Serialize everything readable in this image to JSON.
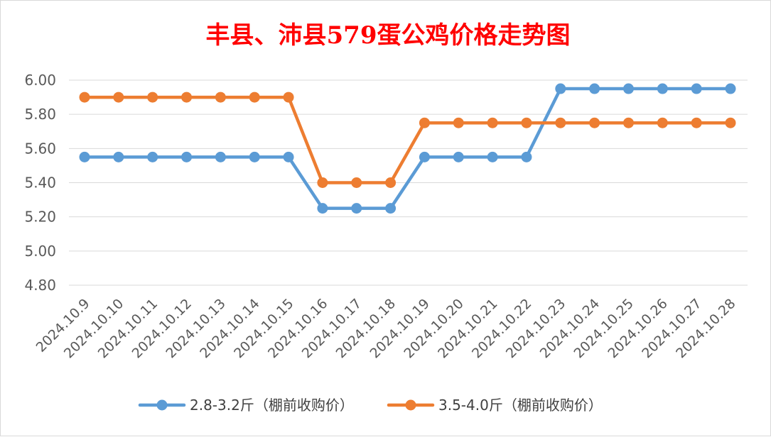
{
  "chart_data": {
    "type": "line",
    "title": "丰县、沛县579蛋公鸡价格走势图",
    "categories": [
      "2024.10.9",
      "2024.10.10",
      "2024.10.11",
      "2024.10.12",
      "2024.10.13",
      "2024.10.14",
      "2024.10.15",
      "2024.10.16",
      "2024.10.17",
      "2024.10.18",
      "2024.10.19",
      "2024.10.20",
      "2024.10.21",
      "2024.10.22",
      "2024.10.23",
      "2024.10.24",
      "2024.10.25",
      "2024.10.26",
      "2024.10.27",
      "2024.10.28"
    ],
    "series": [
      {
        "name": "2.8-3.2斤（棚前收购价）",
        "color": "#5b9bd5",
        "values": [
          5.55,
          5.55,
          5.55,
          5.55,
          5.55,
          5.55,
          5.55,
          5.25,
          5.25,
          5.25,
          5.55,
          5.55,
          5.55,
          5.55,
          5.95,
          5.95,
          5.95,
          5.95,
          5.95,
          5.95
        ]
      },
      {
        "name": "3.5-4.0斤（棚前收购价）",
        "color": "#ed7d31",
        "values": [
          5.9,
          5.9,
          5.9,
          5.9,
          5.9,
          5.9,
          5.9,
          5.4,
          5.4,
          5.4,
          5.75,
          5.75,
          5.75,
          5.75,
          5.75,
          5.75,
          5.75,
          5.75,
          5.75,
          5.75
        ]
      }
    ],
    "xlabel": "",
    "ylabel": "",
    "ylim": [
      4.8,
      6.0
    ],
    "yticks": [
      "6.00",
      "5.80",
      "5.60",
      "5.40",
      "5.20",
      "5.00",
      "4.80"
    ],
    "grid": true,
    "legend_position": "bottom"
  }
}
